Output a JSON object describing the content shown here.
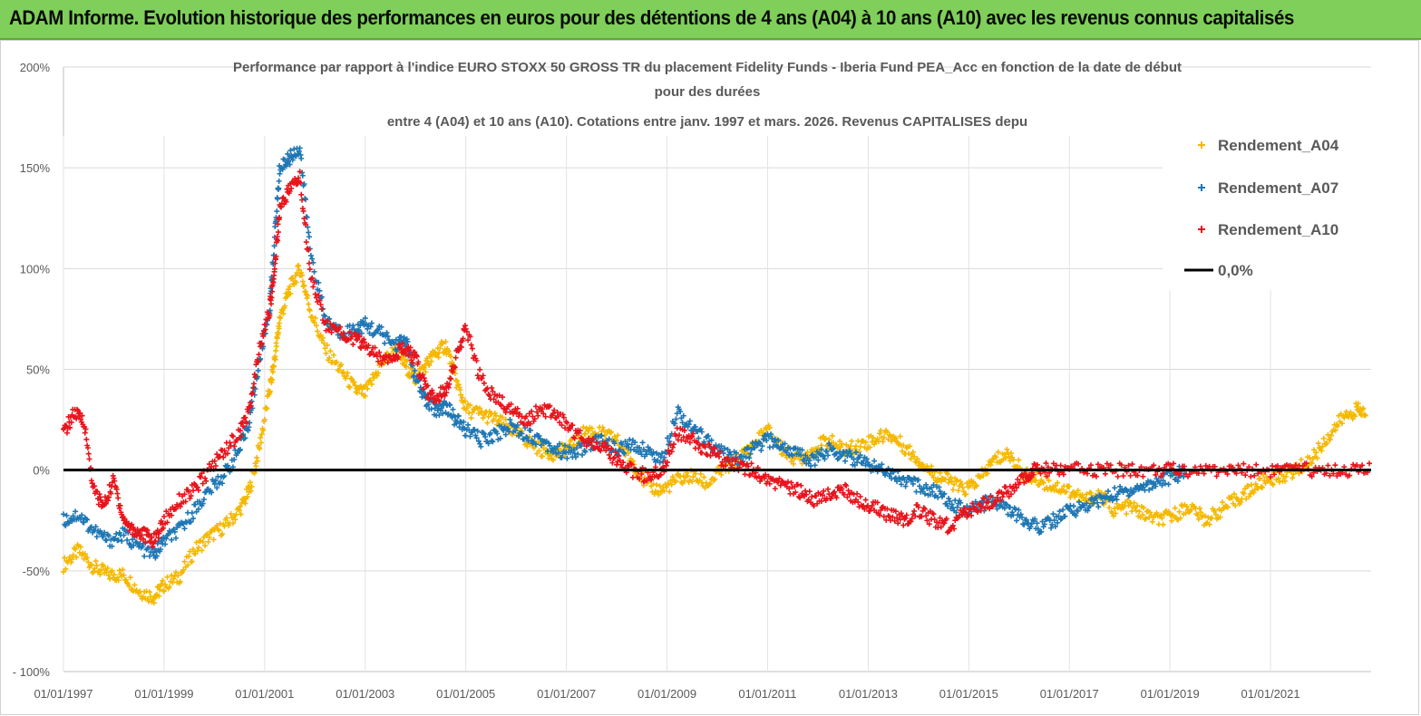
{
  "banner": {
    "title": "ADAM Informe. Evolution historique des performances en euros pour des détentions de 4 ans (A04) à 10 ans (A10) avec les revenus connus capitalisés"
  },
  "chart_data": {
    "type": "scatter",
    "title_lines": [
      "Performance par rapport à l'indice EURO STOXX 50 GROSS TR  du placement Fidelity Funds - Iberia Fund PEA_Acc en fonction de la date de début",
      "pour des durées",
      "entre 4 (A04) et 10 ans (A10). Cotations entre janv. 1997 et mars. 2026. Revenus CAPITALISES depu"
    ],
    "x_tick_labels": [
      "01/01/1997",
      "01/01/1999",
      "01/01/2001",
      "01/01/2003",
      "01/01/2005",
      "01/01/2007",
      "01/01/2009",
      "01/01/2011",
      "01/01/2013",
      "01/01/2015",
      "01/01/2017",
      "01/01/2019",
      "01/01/2021"
    ],
    "y_tick_labels": [
      "200%",
      "150%",
      "100%",
      "50%",
      "0%",
      "-50%",
      "- 100%"
    ],
    "ylim": [
      -100,
      200
    ],
    "xlim": [
      1997.0,
      2023.0
    ],
    "grid": "horizontal",
    "legend_position": "top-right",
    "series": [
      {
        "name": "Rendement_A04",
        "color": "#f5b800",
        "points": [
          [
            1997.0,
            -47
          ],
          [
            1997.3,
            -40
          ],
          [
            1997.6,
            -48
          ],
          [
            1997.9,
            -52
          ],
          [
            1998.2,
            -52
          ],
          [
            1998.5,
            -60
          ],
          [
            1998.8,
            -63
          ],
          [
            1999.0,
            -57
          ],
          [
            1999.3,
            -53
          ],
          [
            1999.6,
            -40
          ],
          [
            1999.9,
            -33
          ],
          [
            2000.2,
            -28
          ],
          [
            2000.5,
            -20
          ],
          [
            2000.7,
            -10
          ],
          [
            2000.9,
            12
          ],
          [
            2001.1,
            40
          ],
          [
            2001.2,
            55
          ],
          [
            2001.3,
            75
          ],
          [
            2001.5,
            90
          ],
          [
            2001.7,
            100
          ],
          [
            2001.9,
            80
          ],
          [
            2002.2,
            60
          ],
          [
            2002.5,
            50
          ],
          [
            2002.8,
            40
          ],
          [
            2003.0,
            38
          ],
          [
            2003.3,
            52
          ],
          [
            2003.6,
            60
          ],
          [
            2003.8,
            52
          ],
          [
            2004.0,
            45
          ],
          [
            2004.2,
            52
          ],
          [
            2004.4,
            58
          ],
          [
            2004.6,
            62
          ],
          [
            2004.8,
            45
          ],
          [
            2005.0,
            30
          ],
          [
            2005.3,
            28
          ],
          [
            2005.6,
            25
          ],
          [
            2005.9,
            20
          ],
          [
            2006.2,
            15
          ],
          [
            2006.5,
            10
          ],
          [
            2006.8,
            8
          ],
          [
            2007.1,
            12
          ],
          [
            2007.4,
            20
          ],
          [
            2007.7,
            18
          ],
          [
            2008.0,
            15
          ],
          [
            2008.3,
            5
          ],
          [
            2008.6,
            -8
          ],
          [
            2008.9,
            -10
          ],
          [
            2009.2,
            -5
          ],
          [
            2009.5,
            -3
          ],
          [
            2009.8,
            -7
          ],
          [
            2010.1,
            0
          ],
          [
            2010.4,
            5
          ],
          [
            2010.7,
            12
          ],
          [
            2011.0,
            20
          ],
          [
            2011.3,
            10
          ],
          [
            2011.6,
            5
          ],
          [
            2011.9,
            10
          ],
          [
            2012.2,
            15
          ],
          [
            2012.5,
            10
          ],
          [
            2012.8,
            12
          ],
          [
            2013.1,
            15
          ],
          [
            2013.4,
            18
          ],
          [
            2013.7,
            12
          ],
          [
            2014.0,
            5
          ],
          [
            2014.3,
            -2
          ],
          [
            2014.6,
            -5
          ],
          [
            2014.9,
            -10
          ],
          [
            2015.2,
            -5
          ],
          [
            2015.5,
            5
          ],
          [
            2015.8,
            8
          ],
          [
            2016.1,
            -2
          ],
          [
            2016.4,
            -5
          ],
          [
            2016.7,
            -8
          ],
          [
            2017.0,
            -10
          ],
          [
            2017.3,
            -15
          ],
          [
            2017.6,
            -12
          ],
          [
            2017.9,
            -20
          ],
          [
            2018.2,
            -18
          ],
          [
            2018.5,
            -22
          ],
          [
            2018.8,
            -25
          ],
          [
            2019.1,
            -22
          ],
          [
            2019.4,
            -18
          ],
          [
            2019.7,
            -25
          ],
          [
            2020.0,
            -20
          ],
          [
            2020.3,
            -15
          ],
          [
            2020.6,
            -10
          ],
          [
            2020.9,
            -5
          ],
          [
            2021.2,
            -3
          ],
          [
            2021.5,
            0
          ],
          [
            2021.8,
            5
          ],
          [
            2022.1,
            15
          ],
          [
            2022.4,
            25
          ],
          [
            2022.7,
            30
          ],
          [
            2022.9,
            28
          ]
        ]
      },
      {
        "name": "Rendement_A07",
        "color": "#1f77b4",
        "points": [
          [
            1997.0,
            -25
          ],
          [
            1997.3,
            -22
          ],
          [
            1997.6,
            -30
          ],
          [
            1997.9,
            -35
          ],
          [
            1998.2,
            -32
          ],
          [
            1998.5,
            -38
          ],
          [
            1998.8,
            -42
          ],
          [
            1999.0,
            -35
          ],
          [
            1999.3,
            -30
          ],
          [
            1999.6,
            -20
          ],
          [
            1999.9,
            -10
          ],
          [
            2000.2,
            -2
          ],
          [
            2000.5,
            10
          ],
          [
            2000.7,
            25
          ],
          [
            2000.9,
            55
          ],
          [
            2001.1,
            80
          ],
          [
            2001.2,
            115
          ],
          [
            2001.3,
            150
          ],
          [
            2001.5,
            155
          ],
          [
            2001.7,
            160
          ],
          [
            2001.9,
            110
          ],
          [
            2002.2,
            75
          ],
          [
            2002.5,
            68
          ],
          [
            2002.8,
            70
          ],
          [
            2003.0,
            72
          ],
          [
            2003.3,
            68
          ],
          [
            2003.6,
            62
          ],
          [
            2003.8,
            65
          ],
          [
            2004.0,
            45
          ],
          [
            2004.2,
            35
          ],
          [
            2004.4,
            30
          ],
          [
            2004.6,
            32
          ],
          [
            2004.8,
            25
          ],
          [
            2005.0,
            20
          ],
          [
            2005.3,
            15
          ],
          [
            2005.6,
            18
          ],
          [
            2005.9,
            22
          ],
          [
            2006.2,
            18
          ],
          [
            2006.5,
            15
          ],
          [
            2006.8,
            10
          ],
          [
            2007.1,
            8
          ],
          [
            2007.4,
            12
          ],
          [
            2007.7,
            15
          ],
          [
            2008.0,
            10
          ],
          [
            2008.3,
            12
          ],
          [
            2008.6,
            10
          ],
          [
            2008.9,
            5
          ],
          [
            2009.2,
            30
          ],
          [
            2009.5,
            20
          ],
          [
            2009.8,
            15
          ],
          [
            2010.1,
            8
          ],
          [
            2010.4,
            5
          ],
          [
            2010.7,
            10
          ],
          [
            2011.0,
            15
          ],
          [
            2011.3,
            12
          ],
          [
            2011.6,
            8
          ],
          [
            2011.9,
            5
          ],
          [
            2012.2,
            10
          ],
          [
            2012.5,
            8
          ],
          [
            2012.8,
            5
          ],
          [
            2013.1,
            2
          ],
          [
            2013.4,
            0
          ],
          [
            2013.7,
            -5
          ],
          [
            2014.0,
            -8
          ],
          [
            2014.3,
            -10
          ],
          [
            2014.6,
            -15
          ],
          [
            2014.9,
            -20
          ],
          [
            2015.2,
            -18
          ],
          [
            2015.5,
            -15
          ],
          [
            2015.8,
            -20
          ],
          [
            2016.1,
            -25
          ],
          [
            2016.4,
            -28
          ],
          [
            2016.7,
            -25
          ],
          [
            2017.0,
            -20
          ],
          [
            2017.3,
            -18
          ],
          [
            2017.6,
            -15
          ],
          [
            2017.9,
            -12
          ],
          [
            2018.2,
            -10
          ],
          [
            2018.5,
            -8
          ],
          [
            2018.8,
            -5
          ],
          [
            2019.1,
            -3
          ],
          [
            2019.3,
            0
          ]
        ]
      },
      {
        "name": "Rendement_A10",
        "color": "#e8141c",
        "points": [
          [
            1997.0,
            18
          ],
          [
            1997.2,
            28
          ],
          [
            1997.4,
            25
          ],
          [
            1997.6,
            -10
          ],
          [
            1997.8,
            -18
          ],
          [
            1998.0,
            -5
          ],
          [
            1998.2,
            -25
          ],
          [
            1998.4,
            -30
          ],
          [
            1998.6,
            -32
          ],
          [
            1998.8,
            -35
          ],
          [
            1999.0,
            -25
          ],
          [
            1999.3,
            -15
          ],
          [
            1999.6,
            -10
          ],
          [
            1999.9,
            0
          ],
          [
            2000.2,
            10
          ],
          [
            2000.5,
            18
          ],
          [
            2000.7,
            30
          ],
          [
            2000.9,
            60
          ],
          [
            2001.1,
            80
          ],
          [
            2001.2,
            100
          ],
          [
            2001.3,
            130
          ],
          [
            2001.5,
            140
          ],
          [
            2001.7,
            145
          ],
          [
            2001.9,
            100
          ],
          [
            2002.2,
            72
          ],
          [
            2002.5,
            68
          ],
          [
            2002.8,
            65
          ],
          [
            2003.0,
            62
          ],
          [
            2003.3,
            55
          ],
          [
            2003.6,
            58
          ],
          [
            2003.8,
            60
          ],
          [
            2004.0,
            55
          ],
          [
            2004.2,
            40
          ],
          [
            2004.4,
            35
          ],
          [
            2004.6,
            40
          ],
          [
            2004.8,
            55
          ],
          [
            2005.0,
            70
          ],
          [
            2005.3,
            45
          ],
          [
            2005.6,
            35
          ],
          [
            2005.9,
            30
          ],
          [
            2006.2,
            25
          ],
          [
            2006.5,
            30
          ],
          [
            2006.8,
            28
          ],
          [
            2007.1,
            20
          ],
          [
            2007.4,
            15
          ],
          [
            2007.7,
            12
          ],
          [
            2008.0,
            5
          ],
          [
            2008.3,
            0
          ],
          [
            2008.6,
            -3
          ],
          [
            2008.9,
            0
          ],
          [
            2009.2,
            18
          ],
          [
            2009.5,
            15
          ],
          [
            2009.8,
            10
          ],
          [
            2010.1,
            5
          ],
          [
            2010.4,
            2
          ],
          [
            2010.7,
            0
          ],
          [
            2011.0,
            -5
          ],
          [
            2011.3,
            -8
          ],
          [
            2011.6,
            -10
          ],
          [
            2011.9,
            -15
          ],
          [
            2012.2,
            -12
          ],
          [
            2012.5,
            -10
          ],
          [
            2012.8,
            -15
          ],
          [
            2013.1,
            -18
          ],
          [
            2013.4,
            -22
          ],
          [
            2013.7,
            -25
          ],
          [
            2014.0,
            -20
          ],
          [
            2014.3,
            -25
          ],
          [
            2014.6,
            -28
          ],
          [
            2014.9,
            -22
          ],
          [
            2015.2,
            -18
          ],
          [
            2015.5,
            -15
          ],
          [
            2015.8,
            -10
          ],
          [
            2016.1,
            -5
          ],
          [
            2016.3,
            0
          ],
          [
            2016.6,
            0
          ],
          [
            2017.0,
            0
          ],
          [
            2017.5,
            0
          ],
          [
            2018.0,
            0
          ],
          [
            2018.5,
            0
          ],
          [
            2019.0,
            0
          ],
          [
            2019.5,
            0
          ],
          [
            2020.0,
            0
          ],
          [
            2020.5,
            0
          ],
          [
            2021.0,
            0
          ],
          [
            2021.5,
            0
          ],
          [
            2022.0,
            0
          ],
          [
            2022.5,
            0
          ],
          [
            2023.0,
            0
          ]
        ]
      },
      {
        "name": "0,0%",
        "color": "#000000",
        "type": "line",
        "points": [
          [
            1997.0,
            0
          ],
          [
            2023.0,
            0
          ]
        ]
      }
    ]
  }
}
